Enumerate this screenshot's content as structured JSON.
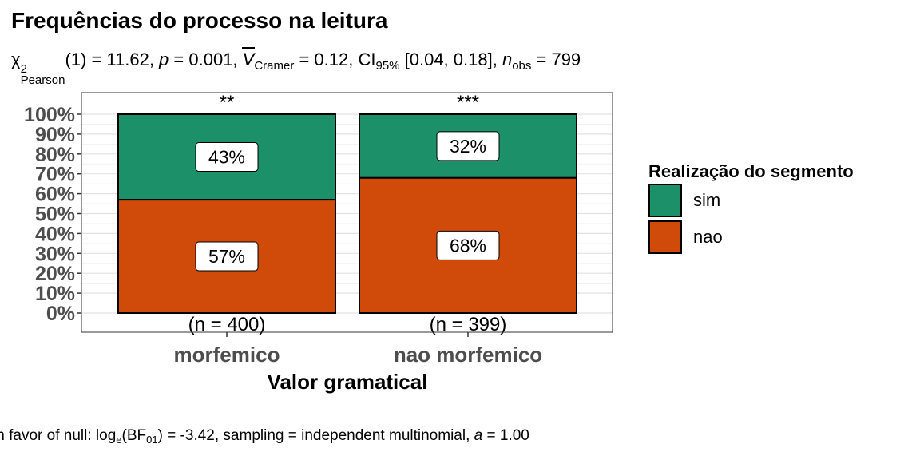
{
  "title": "Frequências do processo na leitura",
  "subtitle": {
    "chi_symbol": "χ",
    "chi_sup": "2",
    "chi_sub": "Pearson",
    "stat_part": "(1) = 11.62, ",
    "p_symbol": "p",
    "p_part": " = 0.001, ",
    "v_symbol": "V",
    "v_sub": "Cramer",
    "v_part": " = 0.12, CI",
    "ci_sub": "95%",
    "ci_part": " [0.04, 0.18], ",
    "n_symbol": "n",
    "n_sub": "obs",
    "n_part": " = 799"
  },
  "caption": {
    "text1": "In favor of null: log",
    "sub1": "e",
    "text2": "(BF",
    "sub2": "01",
    "text3": ") = -3.42, sampling = independent multinomial, ",
    "a_symbol": "a",
    "text4": " = 1.00"
  },
  "chart_data": {
    "type": "bar",
    "stacked": true,
    "percent": true,
    "categories": [
      "morfemico",
      "nao morfemico"
    ],
    "series": [
      {
        "name": "sim",
        "values": [
          43,
          32
        ],
        "color": "#1B9069"
      },
      {
        "name": "nao",
        "values": [
          57,
          68
        ],
        "color": "#D04A0A"
      }
    ],
    "data_labels": [
      [
        "43%",
        "32%"
      ],
      [
        "57%",
        "68%"
      ]
    ],
    "counts": [
      "(n = 400)",
      "(n = 399)"
    ],
    "significance": [
      "**",
      "***"
    ],
    "xlabel": "Valor gramatical",
    "ylabel": "",
    "ylim": [
      0,
      100
    ],
    "yticks": [
      "0%",
      "10%",
      "20%",
      "30%",
      "40%",
      "50%",
      "60%",
      "70%",
      "80%",
      "90%",
      "100%"
    ],
    "grid": true,
    "legend": {
      "title": "Realização do segmento",
      "placement": "right",
      "entries": [
        "sim",
        "nao"
      ]
    }
  }
}
